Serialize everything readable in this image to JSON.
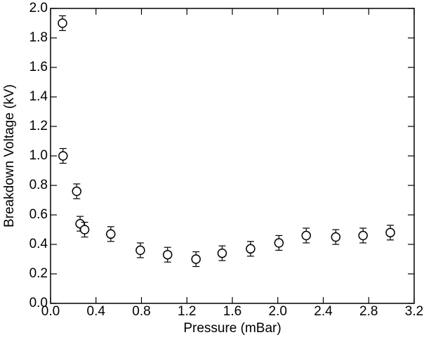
{
  "chart_data": {
    "type": "scatter",
    "x_label": "Pressure (mBar)",
    "y_label": "Breakdown Voltage (kV)",
    "x": [
      0.105,
      0.11,
      0.23,
      0.26,
      0.3,
      0.53,
      0.79,
      1.03,
      1.28,
      1.51,
      1.76,
      2.01,
      2.25,
      2.51,
      2.75,
      2.99
    ],
    "values": [
      1.9,
      1.0,
      0.76,
      0.54,
      0.5,
      0.47,
      0.36,
      0.33,
      0.3,
      0.34,
      0.37,
      0.41,
      0.46,
      0.45,
      0.46,
      0.48
    ],
    "errors": [
      0.05,
      0.05,
      0.05,
      0.05,
      0.05,
      0.05,
      0.05,
      0.05,
      0.05,
      0.05,
      0.05,
      0.05,
      0.05,
      0.05,
      0.05,
      0.05
    ],
    "color": "#000000",
    "xlim": [
      0,
      3.2
    ],
    "ylim": [
      0,
      2.0
    ],
    "xticks": [
      {
        "value": 0,
        "label": "0.0"
      },
      0.4,
      0.8,
      1.2,
      1.6,
      {
        "value": 2,
        "label": "2.0"
      },
      2.4,
      2.8,
      3.2
    ],
    "yticks": [
      {
        "value": 0,
        "label": "0.0"
      },
      0.2,
      0.4,
      0.6,
      0.8,
      {
        "value": 1,
        "label": "1.0"
      },
      1.2,
      1.4,
      1.6,
      1.8,
      {
        "value": 2,
        "label": "2.0"
      }
    ]
  }
}
